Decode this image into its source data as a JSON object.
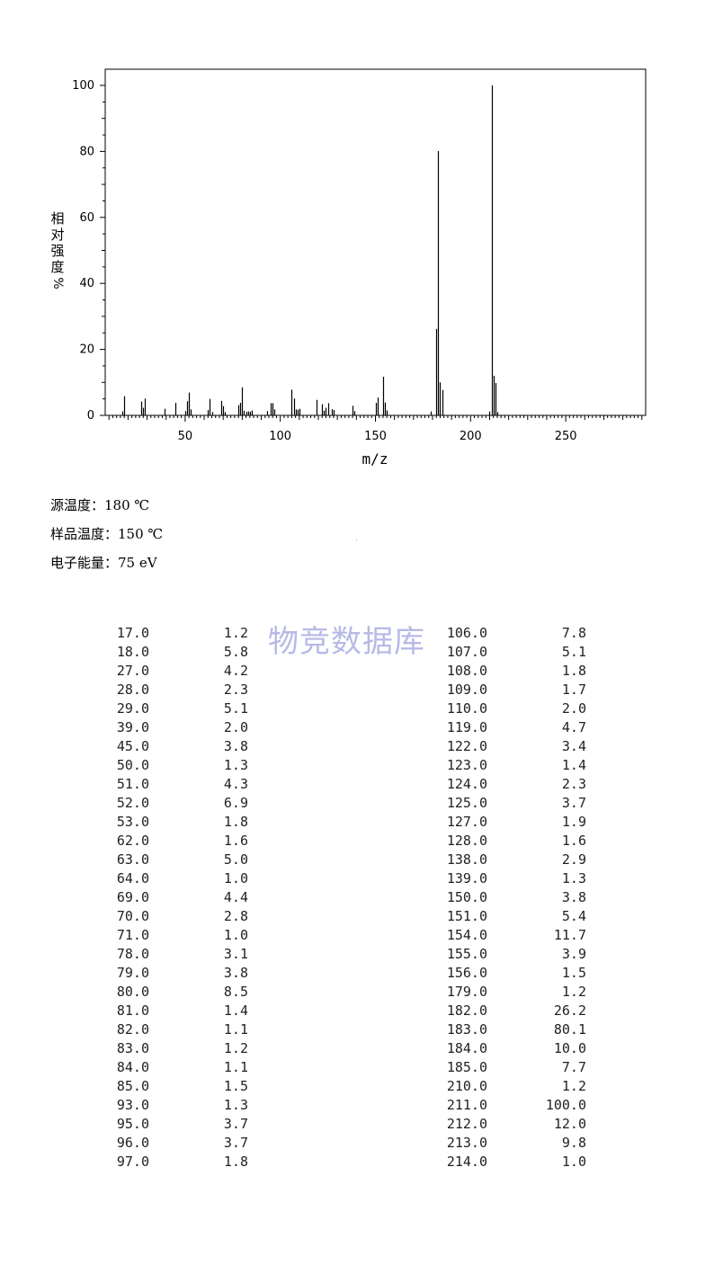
{
  "chart_data": {
    "type": "bar",
    "xlabel": "m/z",
    "ylabel": [
      "相",
      "对",
      "强",
      "度",
      "%"
    ],
    "xlim": [
      8,
      292
    ],
    "ylim": [
      0,
      100
    ],
    "x_ticks": [
      50,
      100,
      150,
      200,
      250
    ],
    "y_ticks": [
      0,
      20,
      40,
      60,
      80,
      100
    ],
    "grid": false,
    "x": [
      17,
      18,
      27,
      28,
      29,
      39,
      45,
      50,
      51,
      52,
      53,
      62,
      63,
      64,
      69,
      70,
      71,
      78,
      79,
      80,
      81,
      82,
      83,
      84,
      85,
      93,
      95,
      96,
      97,
      106,
      107,
      108,
      109,
      110,
      119,
      122,
      123,
      124,
      125,
      127,
      128,
      138,
      139,
      150,
      151,
      154,
      155,
      156,
      179,
      182,
      183,
      184,
      185,
      210,
      211,
      212,
      213,
      214
    ],
    "values": [
      1.2,
      5.8,
      4.2,
      2.3,
      5.1,
      2.0,
      3.8,
      1.3,
      4.3,
      6.9,
      1.8,
      1.6,
      5.0,
      1.0,
      4.4,
      2.8,
      1.0,
      3.1,
      3.8,
      8.5,
      1.4,
      1.1,
      1.2,
      1.1,
      1.5,
      1.3,
      3.7,
      3.7,
      1.8,
      7.8,
      5.1,
      1.8,
      1.7,
      2.0,
      4.7,
      3.4,
      1.4,
      2.3,
      3.7,
      1.9,
      1.6,
      2.9,
      1.3,
      3.8,
      5.4,
      11.7,
      3.9,
      1.5,
      1.2,
      26.2,
      80.1,
      10.0,
      7.7,
      1.2,
      100.0,
      12.0,
      9.8,
      1.0
    ]
  },
  "conditions": {
    "source_temp": "源温度：180 ℃",
    "sample_temp": "样品温度：150 ℃",
    "electron_energy": "电子能量：75 eV"
  },
  "watermark": "物竞数据库",
  "peak_table": {
    "left": [
      [
        "17.0",
        "1.2"
      ],
      [
        "18.0",
        "5.8"
      ],
      [
        "27.0",
        "4.2"
      ],
      [
        "28.0",
        "2.3"
      ],
      [
        "29.0",
        "5.1"
      ],
      [
        "39.0",
        "2.0"
      ],
      [
        "45.0",
        "3.8"
      ],
      [
        "50.0",
        "1.3"
      ],
      [
        "51.0",
        "4.3"
      ],
      [
        "52.0",
        "6.9"
      ],
      [
        "53.0",
        "1.8"
      ],
      [
        "62.0",
        "1.6"
      ],
      [
        "63.0",
        "5.0"
      ],
      [
        "64.0",
        "1.0"
      ],
      [
        "69.0",
        "4.4"
      ],
      [
        "70.0",
        "2.8"
      ],
      [
        "71.0",
        "1.0"
      ],
      [
        "78.0",
        "3.1"
      ],
      [
        "79.0",
        "3.8"
      ],
      [
        "80.0",
        "8.5"
      ],
      [
        "81.0",
        "1.4"
      ],
      [
        "82.0",
        "1.1"
      ],
      [
        "83.0",
        "1.2"
      ],
      [
        "84.0",
        "1.1"
      ],
      [
        "85.0",
        "1.5"
      ],
      [
        "93.0",
        "1.3"
      ],
      [
        "95.0",
        "3.7"
      ],
      [
        "96.0",
        "3.7"
      ],
      [
        "97.0",
        "1.8"
      ]
    ],
    "right": [
      [
        "106.0",
        "7.8"
      ],
      [
        "107.0",
        "5.1"
      ],
      [
        "108.0",
        "1.8"
      ],
      [
        "109.0",
        "1.7"
      ],
      [
        "110.0",
        "2.0"
      ],
      [
        "119.0",
        "4.7"
      ],
      [
        "122.0",
        "3.4"
      ],
      [
        "123.0",
        "1.4"
      ],
      [
        "124.0",
        "2.3"
      ],
      [
        "125.0",
        "3.7"
      ],
      [
        "127.0",
        "1.9"
      ],
      [
        "128.0",
        "1.6"
      ],
      [
        "138.0",
        "2.9"
      ],
      [
        "139.0",
        "1.3"
      ],
      [
        "150.0",
        "3.8"
      ],
      [
        "151.0",
        "5.4"
      ],
      [
        "154.0",
        "11.7"
      ],
      [
        "155.0",
        "3.9"
      ],
      [
        "156.0",
        "1.5"
      ],
      [
        "179.0",
        "1.2"
      ],
      [
        "182.0",
        "26.2"
      ],
      [
        "183.0",
        "80.1"
      ],
      [
        "184.0",
        "10.0"
      ],
      [
        "185.0",
        "7.7"
      ],
      [
        "210.0",
        "1.2"
      ],
      [
        "211.0",
        "100.0"
      ],
      [
        "212.0",
        "12.0"
      ],
      [
        "213.0",
        "9.8"
      ],
      [
        "214.0",
        "1.0"
      ]
    ]
  }
}
